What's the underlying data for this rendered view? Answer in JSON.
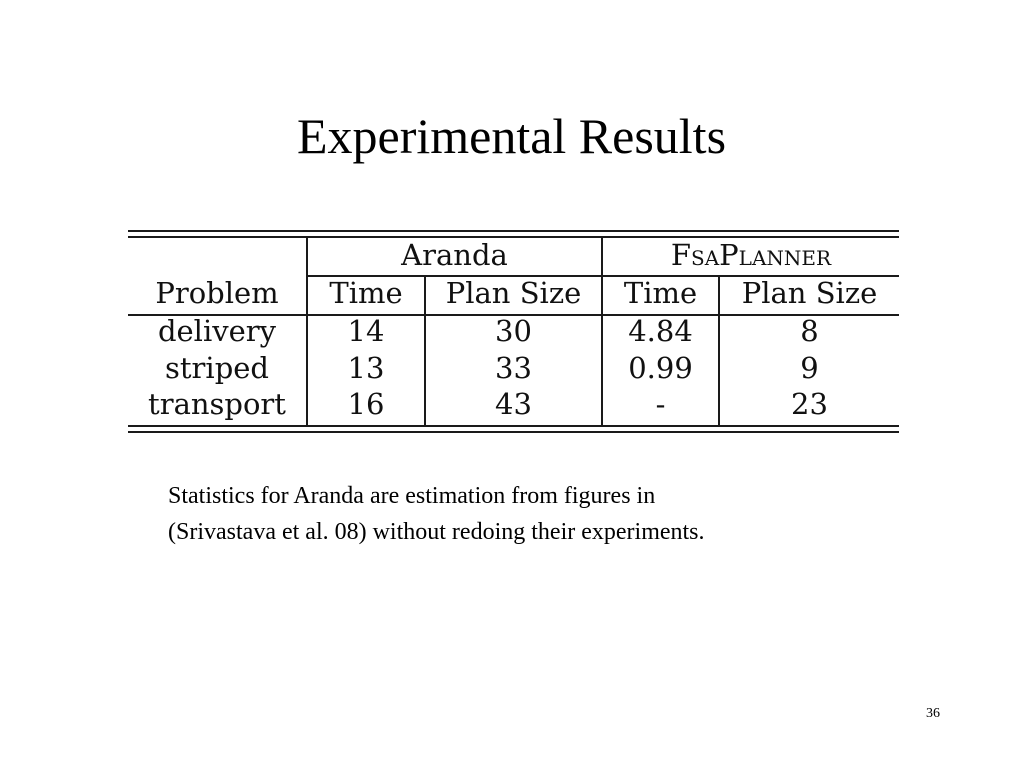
{
  "slide": {
    "title": "Experimental Results",
    "page_number": "36"
  },
  "table": {
    "group_headers": {
      "aranda": "Aranda",
      "fsaplanner": "FsaPlanner"
    },
    "columns": [
      "Problem",
      "Time",
      "Plan Size",
      "Time",
      "Plan Size"
    ],
    "rows": [
      [
        "delivery",
        "14",
        "30",
        "4.84",
        "8"
      ],
      [
        "striped",
        "13",
        "33",
        "0.99",
        "9"
      ],
      [
        "transport",
        "16",
        "43",
        "-",
        "23"
      ]
    ]
  },
  "caption": {
    "line1": "Statistics for Aranda are estimation from figures in",
    "line2": "(Srivastava et al. 08) without redoing their experiments."
  }
}
